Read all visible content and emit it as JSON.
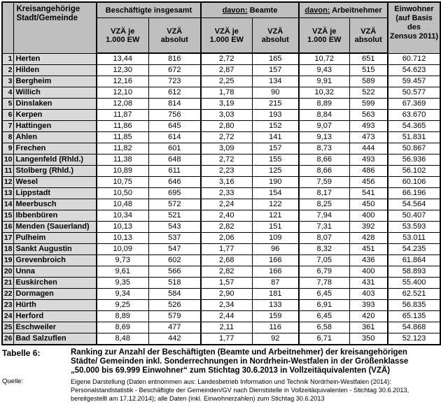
{
  "table": {
    "header": {
      "city": "Kreisangehörige\nStadt/Gemeinde",
      "groups": [
        {
          "prefix": "",
          "label": "Beschäftigte insgesamt"
        },
        {
          "prefix": "davon:",
          "label": "Beamte"
        },
        {
          "prefix": "davon:",
          "label": "Arbeitnehmer"
        }
      ],
      "sub_per": "VZÄ je\n1.000 EW",
      "sub_abs": "VZÄ\nabsolut",
      "einwohner": "Einwohner\n(auf Basis des\nZensus 2011)"
    },
    "column_keys": [
      "rank",
      "city",
      "total-vza-per-1000",
      "total-vza-absolut",
      "beamte-vza-per-1000",
      "beamte-vza-absolut",
      "arbeitnehmer-vza-per-1000",
      "arbeitnehmer-vza-absolut",
      "einwohner"
    ],
    "rows": [
      [
        "1",
        "Herten",
        "13,44",
        "816",
        "2,72",
        "165",
        "10,72",
        "651",
        "60.712"
      ],
      [
        "2",
        "Hilden",
        "12,30",
        "672",
        "2,87",
        "157",
        "9,43",
        "515",
        "54.623"
      ],
      [
        "3",
        "Bergheim",
        "12,16",
        "723",
        "2,25",
        "134",
        "9,91",
        "589",
        "59.457"
      ],
      [
        "4",
        "Willich",
        "12,10",
        "612",
        "1,78",
        "90",
        "10,32",
        "522",
        "50.577"
      ],
      [
        "5",
        "Dinslaken",
        "12,08",
        "814",
        "3,19",
        "215",
        "8,89",
        "599",
        "67.369"
      ],
      [
        "6",
        "Kerpen",
        "11,87",
        "756",
        "3,03",
        "193",
        "8,84",
        "563",
        "63.670"
      ],
      [
        "7",
        "Hattingen",
        "11,86",
        "645",
        "2,80",
        "152",
        "9,07",
        "493",
        "54.365"
      ],
      [
        "8",
        "Ahlen",
        "11,85",
        "614",
        "2,72",
        "141",
        "9,13",
        "473",
        "51.831"
      ],
      [
        "9",
        "Frechen",
        "11,82",
        "601",
        "3,09",
        "157",
        "8,73",
        "444",
        "50.867"
      ],
      [
        "10",
        "Langenfeld (Rhld.)",
        "11,38",
        "648",
        "2,72",
        "155",
        "8,66",
        "493",
        "56.936"
      ],
      [
        "11",
        "Stolberg (Rhld.)",
        "10,89",
        "611",
        "2,23",
        "125",
        "8,66",
        "486",
        "56.102"
      ],
      [
        "12",
        "Wesel",
        "10,75",
        "646",
        "3,16",
        "190",
        "7,59",
        "456",
        "60.106"
      ],
      [
        "13",
        "Lippstadt",
        "10,50",
        "695",
        "2,33",
        "154",
        "8,17",
        "541",
        "66.196"
      ],
      [
        "14",
        "Meerbusch",
        "10,48",
        "572",
        "2,24",
        "122",
        "8,25",
        "450",
        "54.564"
      ],
      [
        "15",
        "Ibbenbüren",
        "10,34",
        "521",
        "2,40",
        "121",
        "7,94",
        "400",
        "50.407"
      ],
      [
        "16",
        "Menden (Sauerland)",
        "10,13",
        "543",
        "2,82",
        "151",
        "7,31",
        "392",
        "53.593"
      ],
      [
        "17",
        "Pulheim",
        "10,13",
        "537",
        "2,06",
        "109",
        "8,07",
        "428",
        "53.011"
      ],
      [
        "18",
        "Sankt Augustin",
        "10,09",
        "547",
        "1,77",
        "96",
        "8,32",
        "451",
        "54.235"
      ],
      [
        "19",
        "Grevenbroich",
        "9,73",
        "602",
        "2,68",
        "166",
        "7,05",
        "436",
        "61.864"
      ],
      [
        "20",
        "Unna",
        "9,61",
        "566",
        "2,82",
        "166",
        "6,79",
        "400",
        "58.893"
      ],
      [
        "21",
        "Euskirchen",
        "9,35",
        "518",
        "1,57",
        "87",
        "7,78",
        "431",
        "55.400"
      ],
      [
        "22",
        "Dormagen",
        "9,34",
        "584",
        "2,90",
        "181",
        "6,45",
        "403",
        "62.521"
      ],
      [
        "23",
        "Hürth",
        "9,25",
        "526",
        "2,34",
        "133",
        "6,91",
        "393",
        "56.835"
      ],
      [
        "24",
        "Herford",
        "8,89",
        "579",
        "2,44",
        "159",
        "6,45",
        "420",
        "65.135"
      ],
      [
        "25",
        "Eschweiler",
        "8,69",
        "477",
        "2,11",
        "116",
        "6,58",
        "361",
        "54.868"
      ],
      [
        "26",
        "Bad Salzuflen",
        "8,48",
        "442",
        "1,77",
        "92",
        "6,71",
        "350",
        "52.123"
      ]
    ]
  },
  "caption": {
    "label": "Tabelle 6:",
    "text": "Ranking zur Anzahl der Beschäftigten (Beamte und Arbeitnehmer) der kreisangehörigen Städte/ Gemeinden inkl. Sonderrechnungen in Nordrhein-Westfalen in der Größenklasse „50.000 bis 69.999 Einwohner“ zum Stichtag 30.6.2013 in Vollzeitäquivalenten (VZÄ)"
  },
  "source": {
    "label": "Quelle:",
    "text": "Eigene Darstellung (Daten entnommen aus: Landesbetrieb Information und Technik Nordrhein-Westfalen (2014): Personalstandstatistik - Beschäftigte der Gemeinden/GV nach Dienststelle in Vollzeitäquivalenten - Stichtag 30.6.2013, bereitgestellt am 17.12.2014); alle Daten (inkl. Einwohnerzahlen) zum Stichtag 30.6.2013"
  },
  "colors": {
    "header_bg": "#bfbfbf",
    "label_cell_bg": "#d9d9d9",
    "border": "#000000"
  }
}
